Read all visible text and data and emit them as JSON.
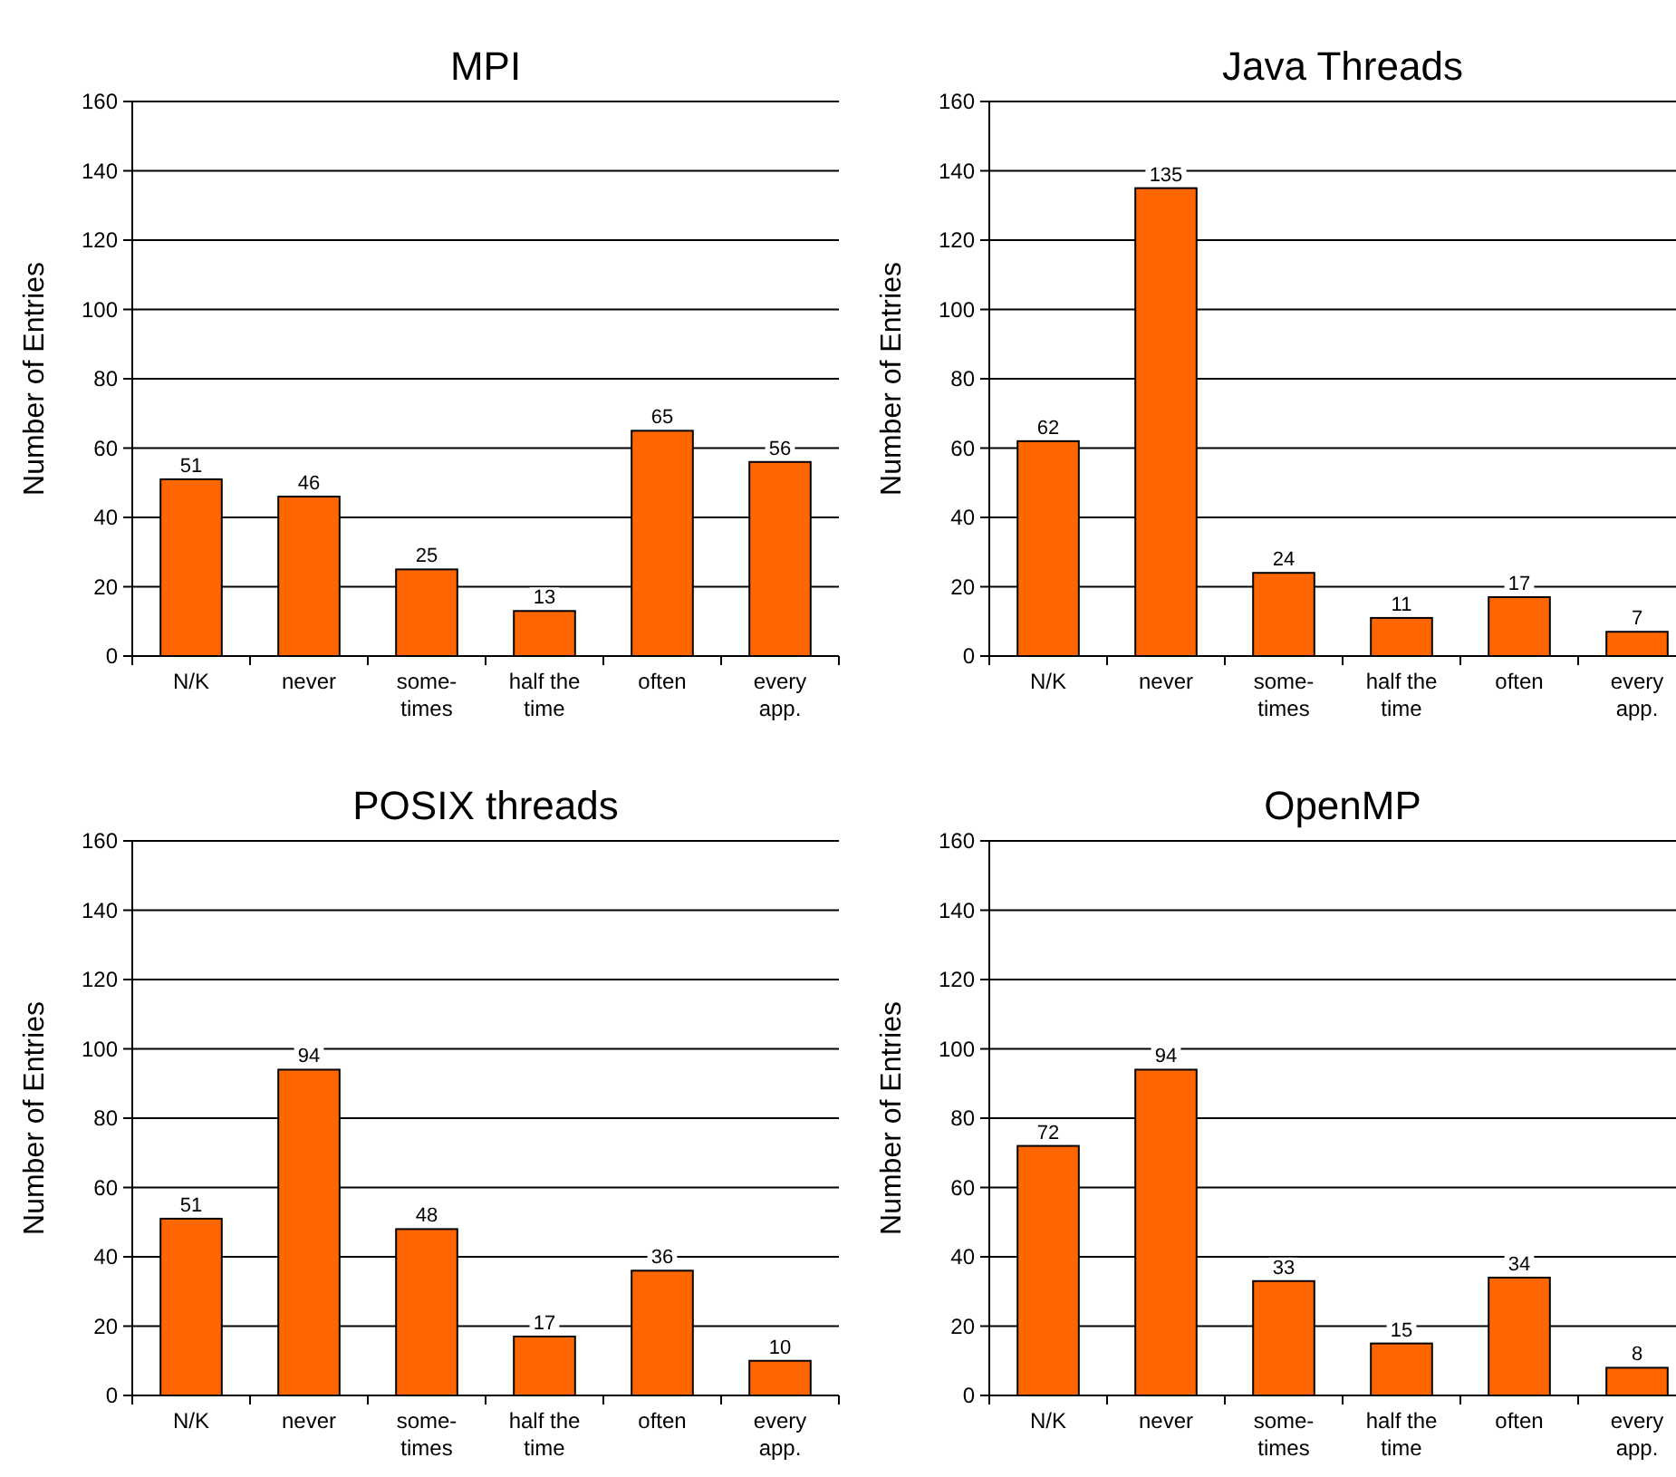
{
  "chart_data": [
    {
      "type": "bar",
      "title": "MPI",
      "ylabel": "Number of Entries",
      "categories": [
        "N/K",
        "never",
        "some-\ntimes",
        "half the\ntime",
        "often",
        "every\napp."
      ],
      "values": [
        51,
        46,
        25,
        13,
        65,
        56
      ],
      "color": "#ff6600",
      "ylim": [
        0,
        160
      ],
      "yticks": [
        0,
        20,
        40,
        60,
        80,
        100,
        120,
        140,
        160
      ],
      "grid": "y",
      "data_labels": true
    },
    {
      "type": "bar",
      "title": "Java Threads",
      "ylabel": "Number of Entries",
      "categories": [
        "N/K",
        "never",
        "some-\ntimes",
        "half the\ntime",
        "often",
        "every\napp."
      ],
      "values": [
        62,
        135,
        24,
        11,
        17,
        7
      ],
      "color": "#ff6600",
      "ylim": [
        0,
        160
      ],
      "yticks": [
        0,
        20,
        40,
        60,
        80,
        100,
        120,
        140,
        160
      ],
      "grid": "y",
      "data_labels": true
    },
    {
      "type": "bar",
      "title": "POSIX threads",
      "ylabel": "Number of Entries",
      "categories": [
        "N/K",
        "never",
        "some-\ntimes",
        "half the\ntime",
        "often",
        "every\napp."
      ],
      "values": [
        51,
        94,
        48,
        17,
        36,
        10
      ],
      "color": "#ff6600",
      "ylim": [
        0,
        160
      ],
      "yticks": [
        0,
        20,
        40,
        60,
        80,
        100,
        120,
        140,
        160
      ],
      "grid": "y",
      "data_labels": true
    },
    {
      "type": "bar",
      "title": "OpenMP",
      "ylabel": "Number of Entries",
      "categories": [
        "N/K",
        "never",
        "some-\ntimes",
        "half the\ntime",
        "often",
        "every\napp."
      ],
      "values": [
        72,
        94,
        33,
        15,
        34,
        8
      ],
      "color": "#ff6600",
      "ylim": [
        0,
        160
      ],
      "yticks": [
        0,
        20,
        40,
        60,
        80,
        100,
        120,
        140,
        160
      ],
      "grid": "y",
      "data_labels": true
    }
  ]
}
